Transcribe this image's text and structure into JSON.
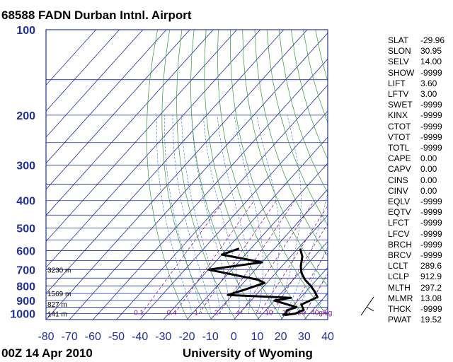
{
  "title": "68588 FADN Durban Intnl. Airport",
  "footer": {
    "date": "00Z 14 Apr 2010",
    "source": "University of Wyoming"
  },
  "chart_data": {
    "type": "line",
    "title": "68588 FADN Durban Intnl. Airport",
    "xlabel": "",
    "ylabel": "",
    "xlim": [
      -80,
      40
    ],
    "ylim": [
      1050,
      100
    ],
    "y_scale": "log",
    "grid": true,
    "x_ticks": [
      "-80",
      "-70",
      "-60",
      "-50",
      "-40",
      "-30",
      "-20",
      "-10",
      "0",
      "10",
      "20",
      "30",
      "40"
    ],
    "x_tick_values": [
      -80,
      -70,
      -60,
      -50,
      -40,
      -30,
      -20,
      -10,
      0,
      10,
      20,
      30,
      40
    ],
    "y_ticks": [
      "100",
      "200",
      "300",
      "400",
      "500",
      "600",
      "700",
      "800",
      "900",
      "1000"
    ],
    "y_tick_values": [
      100,
      200,
      300,
      400,
      500,
      600,
      700,
      800,
      900,
      1000
    ],
    "height_labels": [
      {
        "text": "3230 m",
        "p": 700
      },
      {
        "text": "1569 m",
        "p": 850
      },
      {
        "text": "827 m",
        "p": 925
      },
      {
        "text": "141 m",
        "p": 1000
      }
    ],
    "mixing_ratio_labels": [
      "0.1",
      "0.4",
      "1",
      "2",
      "4",
      "7",
      "10",
      "16",
      "24",
      "40g/kg"
    ],
    "series": [
      {
        "values_desc": "temperature",
        "points": [
          [
            20,
            1012
          ],
          [
            24,
            1000
          ],
          [
            26,
            970
          ],
          [
            23,
            930
          ],
          [
            27,
            875
          ],
          [
            24,
            840
          ],
          [
            20,
            800
          ],
          [
            15,
            760
          ],
          [
            11,
            720
          ],
          [
            8,
            680
          ],
          [
            5,
            630
          ],
          [
            1,
            590
          ]
        ]
      },
      {
        "values_desc": "dewpoint",
        "points": [
          [
            19,
            1012
          ],
          [
            20,
            1000
          ],
          [
            19,
            975
          ],
          [
            22,
            950
          ],
          [
            10,
            900
          ],
          [
            16,
            880
          ],
          [
            -12,
            860
          ],
          [
            -7,
            825
          ],
          [
            -1,
            780
          ],
          [
            -5,
            760
          ],
          [
            -30,
            700
          ],
          [
            -10,
            660
          ],
          [
            -30,
            620
          ],
          [
            -25,
            590
          ]
        ]
      }
    ],
    "wind_barb": {
      "label": ""
    }
  },
  "indices": [
    {
      "key": "SLAT",
      "value": "-29.96"
    },
    {
      "key": "SLON",
      "value": "30.95"
    },
    {
      "key": "SELV",
      "value": "14.00"
    },
    {
      "key": "SHOW",
      "value": "-9999"
    },
    {
      "key": "LIFT",
      "value": "3.60"
    },
    {
      "key": "LFTV",
      "value": "3.00"
    },
    {
      "key": "SWET",
      "value": "-9999"
    },
    {
      "key": "KINX",
      "value": "-9999"
    },
    {
      "key": "CTOT",
      "value": "-9999"
    },
    {
      "key": "VTOT",
      "value": "-9999"
    },
    {
      "key": "TOTL",
      "value": "-9999"
    },
    {
      "key": "CAPE",
      "value": "0.00"
    },
    {
      "key": "CAPV",
      "value": "0.00"
    },
    {
      "key": "CINS",
      "value": "0.00"
    },
    {
      "key": "CINV",
      "value": "0.00"
    },
    {
      "key": "EQLV",
      "value": "-9999"
    },
    {
      "key": "EQTV",
      "value": "-9999"
    },
    {
      "key": "LFCT",
      "value": "-9999"
    },
    {
      "key": "LFCV",
      "value": "-9999"
    },
    {
      "key": "BRCH",
      "value": "-9999"
    },
    {
      "key": "BRCV",
      "value": "-9999"
    },
    {
      "key": "LCLT",
      "value": "289.6"
    },
    {
      "key": "LCLP",
      "value": "912.9"
    },
    {
      "key": "MLTH",
      "value": "297.2"
    },
    {
      "key": "MLMR",
      "value": "13.08"
    },
    {
      "key": "THCK",
      "value": "-9999"
    },
    {
      "key": "PWAT",
      "value": "19.52"
    }
  ],
  "colors": {
    "isotherm": "#1f2fa0",
    "isobar": "#1f2fa0",
    "dry_adiabat": "#2e9a2e",
    "moist_adiabat": "#2c6fbf",
    "mixing_ratio": "#8a1a9a",
    "profile": "#000000"
  }
}
